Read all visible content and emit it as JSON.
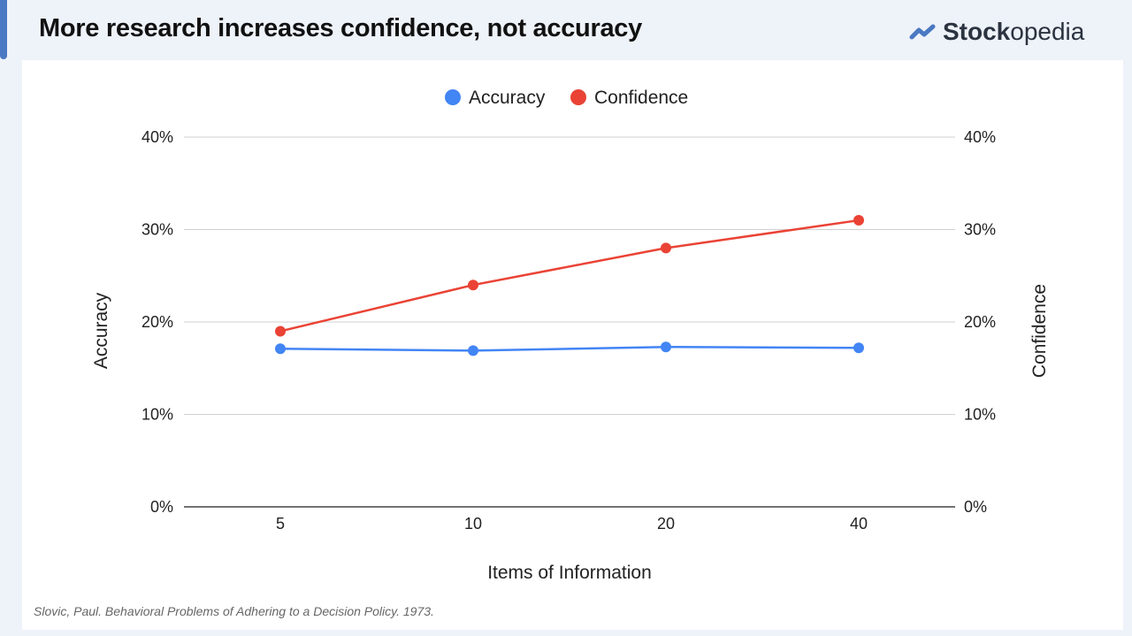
{
  "header": {
    "title": "More research increases confidence, not accuracy",
    "logo_bold": "Stock",
    "logo_rest": "opedia"
  },
  "source": "Slovic, Paul. Behavioral Problems of Adhering to a Decision Policy. 1973.",
  "colors": {
    "accuracy": "#4285f4",
    "confidence": "#ea4335",
    "accent": "#4a78c2"
  },
  "chart_data": {
    "type": "line",
    "title": "",
    "categories": [
      "5",
      "10",
      "20",
      "40"
    ],
    "xlabel": "Items of Information",
    "ylabel": "Accuracy",
    "y2label": "Confidence",
    "ylim": [
      0,
      40
    ],
    "y2lim": [
      0,
      40
    ],
    "yticks": [
      "0%",
      "10%",
      "20%",
      "30%",
      "40%"
    ],
    "grid": true,
    "legend": "top-center",
    "series": [
      {
        "name": "Accuracy",
        "axis": "left",
        "values": [
          17.1,
          16.9,
          17.3,
          17.2
        ]
      },
      {
        "name": "Confidence",
        "axis": "right",
        "values": [
          19.0,
          24.0,
          28.0,
          31.0
        ]
      }
    ]
  }
}
